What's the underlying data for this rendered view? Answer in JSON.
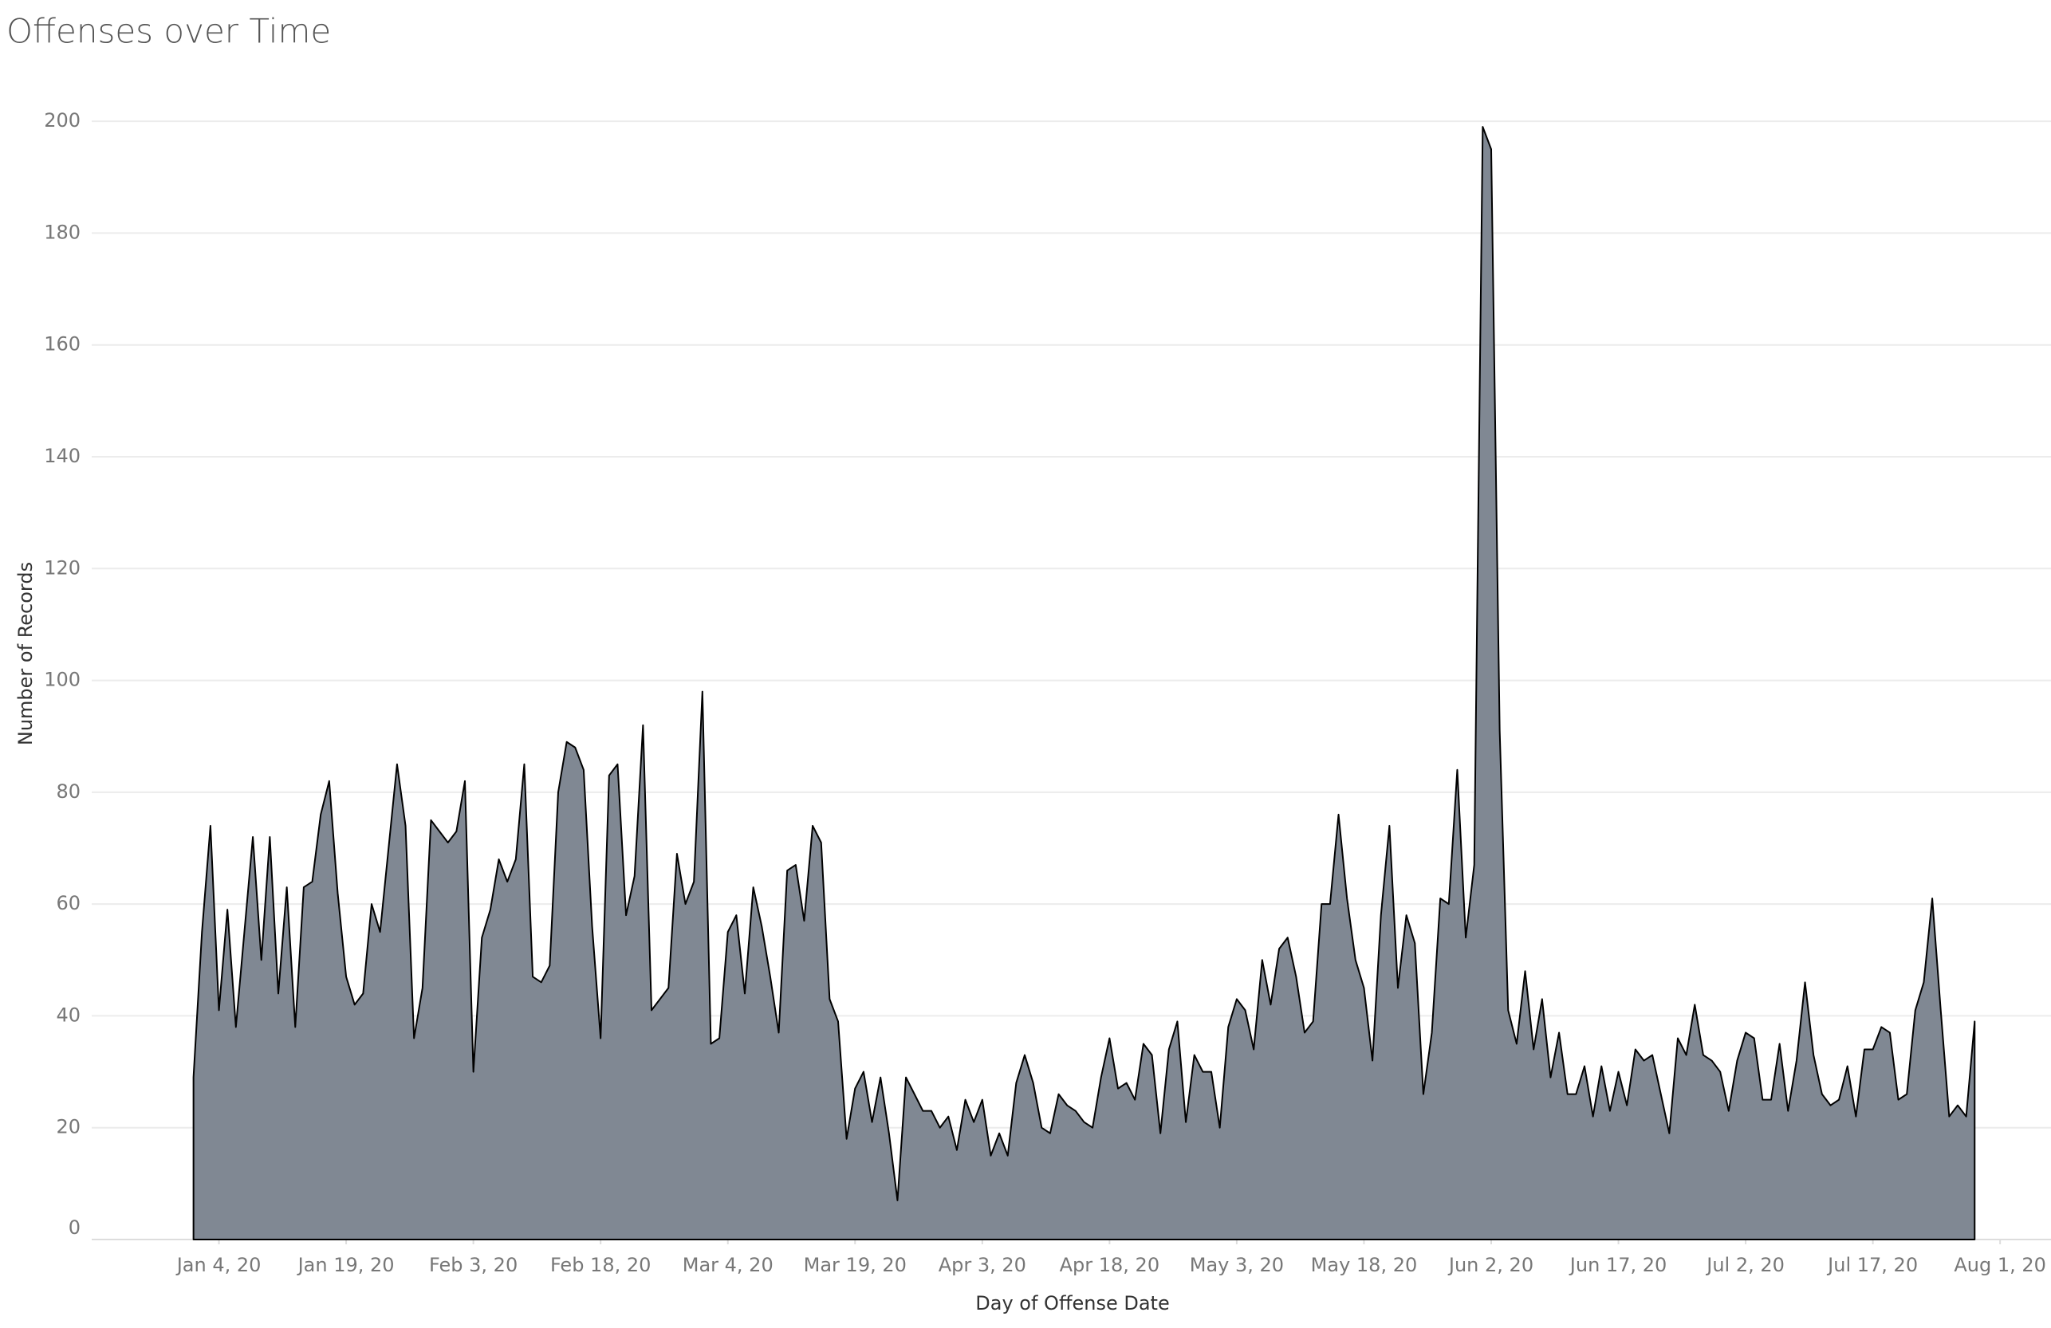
{
  "chart_data": {
    "type": "area",
    "title": "Offenses over Time",
    "x_label": "Day of Offense Date",
    "y_label": "Number of Records",
    "x": [
      "2020-01-01",
      "2020-01-02",
      "2020-01-03",
      "2020-01-04",
      "2020-01-05",
      "2020-01-06",
      "2020-01-07",
      "2020-01-08",
      "2020-01-09",
      "2020-01-10",
      "2020-01-11",
      "2020-01-12",
      "2020-01-13",
      "2020-01-14",
      "2020-01-15",
      "2020-01-16",
      "2020-01-17",
      "2020-01-18",
      "2020-01-19",
      "2020-01-20",
      "2020-01-21",
      "2020-01-22",
      "2020-01-23",
      "2020-01-24",
      "2020-01-25",
      "2020-01-26",
      "2020-01-27",
      "2020-01-28",
      "2020-01-29",
      "2020-01-30",
      "2020-01-31",
      "2020-02-01",
      "2020-02-02",
      "2020-02-03",
      "2020-02-04",
      "2020-02-05",
      "2020-02-06",
      "2020-02-07",
      "2020-02-08",
      "2020-02-09",
      "2020-02-10",
      "2020-02-11",
      "2020-02-12",
      "2020-02-13",
      "2020-02-14",
      "2020-02-15",
      "2020-02-16",
      "2020-02-17",
      "2020-02-18",
      "2020-02-19",
      "2020-02-20",
      "2020-02-21",
      "2020-02-22",
      "2020-02-23",
      "2020-02-24",
      "2020-02-25",
      "2020-02-26",
      "2020-02-27",
      "2020-02-28",
      "2020-02-29",
      "2020-03-01",
      "2020-03-02",
      "2020-03-03",
      "2020-03-04",
      "2020-03-05",
      "2020-03-06",
      "2020-03-07",
      "2020-03-08",
      "2020-03-09",
      "2020-03-10",
      "2020-03-11",
      "2020-03-12",
      "2020-03-13",
      "2020-03-14",
      "2020-03-15",
      "2020-03-16",
      "2020-03-17",
      "2020-03-18",
      "2020-03-19",
      "2020-03-20",
      "2020-03-21",
      "2020-03-22",
      "2020-03-23",
      "2020-03-24",
      "2020-03-25",
      "2020-03-26",
      "2020-03-27",
      "2020-03-28",
      "2020-03-29",
      "2020-03-30",
      "2020-03-31",
      "2020-04-01",
      "2020-04-02",
      "2020-04-03",
      "2020-04-04",
      "2020-04-05",
      "2020-04-06",
      "2020-04-07",
      "2020-04-08",
      "2020-04-09",
      "2020-04-10",
      "2020-04-11",
      "2020-04-12",
      "2020-04-13",
      "2020-04-14",
      "2020-04-15",
      "2020-04-16",
      "2020-04-17",
      "2020-04-18",
      "2020-04-19",
      "2020-04-20",
      "2020-04-21",
      "2020-04-22",
      "2020-04-23",
      "2020-04-24",
      "2020-04-25",
      "2020-04-26",
      "2020-04-27",
      "2020-04-28",
      "2020-04-29",
      "2020-04-30",
      "2020-05-01",
      "2020-05-02",
      "2020-05-03",
      "2020-05-04",
      "2020-05-05",
      "2020-05-06",
      "2020-05-07",
      "2020-05-08",
      "2020-05-09",
      "2020-05-10",
      "2020-05-11",
      "2020-05-12",
      "2020-05-13",
      "2020-05-14",
      "2020-05-15",
      "2020-05-16",
      "2020-05-17",
      "2020-05-18",
      "2020-05-19",
      "2020-05-20",
      "2020-05-21",
      "2020-05-22",
      "2020-05-23",
      "2020-05-24",
      "2020-05-25",
      "2020-05-26",
      "2020-05-27",
      "2020-05-28",
      "2020-05-29",
      "2020-05-30",
      "2020-05-31",
      "2020-06-01",
      "2020-06-02",
      "2020-06-03",
      "2020-06-04",
      "2020-06-05",
      "2020-06-06",
      "2020-06-07",
      "2020-06-08",
      "2020-06-09",
      "2020-06-10",
      "2020-06-11",
      "2020-06-12",
      "2020-06-13",
      "2020-06-14",
      "2020-06-15",
      "2020-06-16",
      "2020-06-17",
      "2020-06-18",
      "2020-06-19",
      "2020-06-20",
      "2020-06-21",
      "2020-06-22",
      "2020-06-23",
      "2020-06-24",
      "2020-06-25",
      "2020-06-26",
      "2020-06-27",
      "2020-06-28",
      "2020-06-29",
      "2020-06-30",
      "2020-07-01",
      "2020-07-02",
      "2020-07-03",
      "2020-07-04",
      "2020-07-05",
      "2020-07-06",
      "2020-07-07",
      "2020-07-08",
      "2020-07-09",
      "2020-07-10",
      "2020-07-11",
      "2020-07-12",
      "2020-07-13",
      "2020-07-14",
      "2020-07-15",
      "2020-07-16",
      "2020-07-17",
      "2020-07-18",
      "2020-07-19",
      "2020-07-20",
      "2020-07-21",
      "2020-07-22",
      "2020-07-23",
      "2020-07-24",
      "2020-07-25",
      "2020-07-26",
      "2020-07-27",
      "2020-07-28",
      "2020-07-29"
    ],
    "values": [
      29,
      55,
      74,
      41,
      59,
      38,
      55,
      72,
      50,
      72,
      44,
      63,
      38,
      63,
      64,
      76,
      82,
      62,
      47,
      42,
      44,
      60,
      55,
      70,
      85,
      74,
      36,
      45,
      75,
      73,
      71,
      73,
      82,
      30,
      54,
      59,
      68,
      64,
      68,
      85,
      47,
      46,
      49,
      80,
      89,
      88,
      84,
      56,
      36,
      83,
      85,
      58,
      65,
      92,
      41,
      43,
      45,
      69,
      60,
      64,
      98,
      35,
      36,
      55,
      58,
      44,
      63,
      56,
      47,
      37,
      66,
      67,
      57,
      74,
      71,
      43,
      39,
      18,
      27,
      30,
      21,
      29,
      19,
      7,
      29,
      26,
      23,
      23,
      20,
      22,
      16,
      25,
      21,
      25,
      15,
      19,
      15,
      28,
      33,
      28,
      20,
      19,
      26,
      24,
      23,
      21,
      20,
      29,
      36,
      27,
      28,
      25,
      35,
      33,
      19,
      34,
      39,
      21,
      33,
      30,
      30,
      20,
      38,
      43,
      41,
      34,
      50,
      42,
      52,
      54,
      47,
      37,
      39,
      60,
      60,
      76,
      61,
      50,
      45,
      32,
      58,
      74,
      45,
      58,
      53,
      26,
      37,
      61,
      60,
      84,
      54,
      67,
      199,
      195,
      91,
      41,
      35,
      48,
      34,
      43,
      29,
      37,
      26,
      26,
      31,
      22,
      31,
      23,
      30,
      24,
      34,
      32,
      33,
      26,
      19,
      36,
      33,
      42,
      33,
      32,
      30,
      23,
      32,
      37,
      36,
      25,
      25,
      35,
      23,
      32,
      46,
      33,
      26,
      24,
      25,
      31,
      22,
      34,
      34,
      38,
      37,
      25,
      26,
      41,
      46,
      61,
      41,
      22,
      24,
      22,
      39
    ],
    "color": "#808893",
    "line_color": "#000000",
    "xlim": [
      "2019-12-20",
      "2020-08-07"
    ],
    "xticks": [
      {
        "value": "2020-01-04",
        "label": "Jan 4, 20"
      },
      {
        "value": "2020-01-19",
        "label": "Jan 19, 20"
      },
      {
        "value": "2020-02-03",
        "label": "Feb 3, 20"
      },
      {
        "value": "2020-02-18",
        "label": "Feb 18, 20"
      },
      {
        "value": "2020-03-04",
        "label": "Mar 4, 20"
      },
      {
        "value": "2020-03-19",
        "label": "Mar 19, 20"
      },
      {
        "value": "2020-04-03",
        "label": "Apr 3, 20"
      },
      {
        "value": "2020-04-18",
        "label": "Apr 18, 20"
      },
      {
        "value": "2020-05-03",
        "label": "May 3, 20"
      },
      {
        "value": "2020-05-18",
        "label": "May 18, 20"
      },
      {
        "value": "2020-06-02",
        "label": "Jun 2, 20"
      },
      {
        "value": "2020-06-17",
        "label": "Jun 17, 20"
      },
      {
        "value": "2020-07-02",
        "label": "Jul 2, 20"
      },
      {
        "value": "2020-07-17",
        "label": "Jul 17, 20"
      },
      {
        "value": "2020-08-01",
        "label": "Aug 1, 20"
      }
    ],
    "ylim": [
      0,
      210
    ],
    "yticks": [
      0,
      20,
      40,
      60,
      80,
      100,
      120,
      140,
      160,
      180,
      200
    ],
    "grid": true
  }
}
